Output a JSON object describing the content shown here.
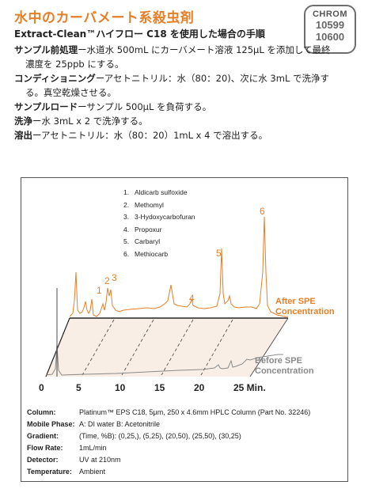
{
  "header": {
    "title": "水中のカーバメート系殺虫剤",
    "chrom_label": "CHROM",
    "chrom_numbers": [
      "10599",
      "10600"
    ],
    "subtitle": "Extract-Clean™ハイフロー C18 を使用した場合の手順"
  },
  "steps": [
    {
      "term": "サンプル前処理",
      "text": "ー水道水 500mL にカーバメート溶液 125µL を添加して最終濃度を 25ppb にする。"
    },
    {
      "term": "コンディショニング",
      "text": "ーアセトニトリル：水（80：20)、次に水 3mL で洗浄する。真空乾燥させる。"
    },
    {
      "term": "サンプルロード",
      "text": "ーサンプル 500µL を負荷する。"
    },
    {
      "term": "洗浄",
      "text": "ー水 3mL x 2 で洗浄する。"
    },
    {
      "term": "溶出",
      "text": "ーアセトニトリル：水（80：20）1mL x 4 で溶出する。"
    }
  ],
  "compounds": [
    {
      "num": "1.",
      "name": "Aldicarb sulfoxide"
    },
    {
      "num": "2.",
      "name": "Methomyl"
    },
    {
      "num": "3.",
      "name": "3-Hydoxycarbofuran"
    },
    {
      "num": "4.",
      "name": "Propoxur"
    },
    {
      "num": "5.",
      "name": "Carbaryl"
    },
    {
      "num": "6.",
      "name": "Methiocarb"
    }
  ],
  "colors": {
    "title": "#e57f28",
    "after": "#e57f28",
    "before": "#8a8a8a",
    "plane": "#f8eee6"
  },
  "chart_data": {
    "type": "line",
    "x_ticks": [
      "0",
      "5",
      "10",
      "15",
      "20",
      "25 Min."
    ],
    "x_tick_values": [
      0,
      5,
      10,
      15,
      20,
      25
    ],
    "series": [
      {
        "name": "After SPE Concentration",
        "name_lines": [
          "After SPE",
          "Concentration"
        ]
      },
      {
        "name": "Before SPE Concentration",
        "name_lines": [
          "Before SPE",
          "Concentration"
        ]
      }
    ],
    "peaks": [
      {
        "label": "1",
        "time": 3.7
      },
      {
        "label": "2",
        "time": 4.6
      },
      {
        "label": "3",
        "time": 5.1
      },
      {
        "label": "4",
        "time": 12.8
      },
      {
        "label": "5",
        "time": 18.0
      },
      {
        "label": "6",
        "time": 24.4
      }
    ]
  },
  "conditions": [
    {
      "key": "Column:",
      "value": "Platinum™ EPS C18, 5µm, 250 x 4.6mm HPLC Column (Part No. 32246)"
    },
    {
      "key": "Mobile Phase:",
      "value": "A: DI water  B: Acetonitrile"
    },
    {
      "key": "Gradient:",
      "value": "(Time, %B): (0,25,), (5,25), (20,50), (25,50), (30,25)"
    },
    {
      "key": "Flow Rate:",
      "value": "1mL/min"
    },
    {
      "key": "Detector:",
      "value": "UV at 210nm"
    },
    {
      "key": "Temperature:",
      "value": "Ambient"
    }
  ]
}
